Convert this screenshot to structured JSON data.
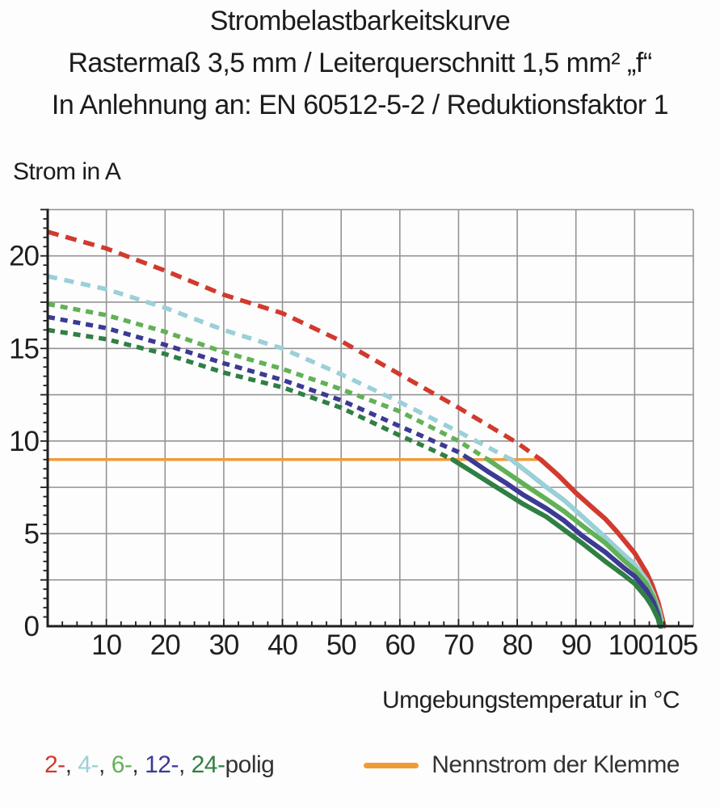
{
  "title": {
    "line1": "Strombelastbarkeitskurve",
    "line2": "Rastermaß 3,5 mm / Leiterquerschnitt 1,5 mm² „f“",
    "line3": "In Anlehnung an: EN 60512-5-2 / Reduktionsfaktor 1"
  },
  "axes": {
    "y_title": "Strom in A",
    "x_title": "Umgebungstemperatur in °C"
  },
  "legend": {
    "poles": [
      {
        "label": "2-",
        "color": "#d13a2e"
      },
      {
        "label": "4-",
        "color": "#9ad0d8"
      },
      {
        "label": "6-",
        "color": "#62b156"
      },
      {
        "label": "12-",
        "color": "#3c3a94"
      },
      {
        "label": "24-",
        "color": "#307f45"
      }
    ],
    "separator": ", ",
    "suffix": "polig",
    "suffix_color": "#333333",
    "nominal_label": "Nennstrom der Klemme",
    "nominal_color": "#f19b38"
  },
  "chart_data": {
    "type": "line",
    "title": "Strombelastbarkeitskurve",
    "xlabel": "Umgebungstemperatur in °C",
    "ylabel": "Strom in A",
    "xlim": [
      0,
      110
    ],
    "ylim": [
      0,
      22.5
    ],
    "x_major_step": 10,
    "y_major_step": 2.5,
    "x_minor_step": 2.5,
    "y_minor_step": 0.5,
    "x_tick_labels": [
      10,
      20,
      30,
      40,
      50,
      60,
      70,
      80,
      90,
      100,
      105
    ],
    "y_tick_labels": [
      0,
      5,
      10,
      15,
      20
    ],
    "grid": true,
    "grid_color": "#949494",
    "axis_color": "#1f1f1f",
    "nominal_line": {
      "name": "Nennstrom der Klemme",
      "color": "#f19b38",
      "current_a": 9,
      "x_start": 0,
      "x_end": 84.3
    },
    "series": [
      {
        "name": "2-polig",
        "color": "#d13a2e",
        "dash_pattern": "14 9",
        "dashed": [
          [
            0,
            21.3
          ],
          [
            10,
            20.4
          ],
          [
            20,
            19.2
          ],
          [
            30,
            17.9
          ],
          [
            40,
            16.9
          ],
          [
            50,
            15.4
          ],
          [
            60,
            13.6
          ],
          [
            70,
            11.8
          ],
          [
            80,
            9.9
          ],
          [
            84,
            9.0
          ]
        ],
        "solid": [
          [
            84,
            9.0
          ],
          [
            87,
            8.15
          ],
          [
            90,
            7.2
          ],
          [
            93,
            6.35
          ],
          [
            95,
            5.8
          ],
          [
            97,
            5.1
          ],
          [
            100,
            3.95
          ],
          [
            102,
            2.9
          ],
          [
            103,
            2.2
          ],
          [
            104,
            1.3
          ],
          [
            104.8,
            0.3
          ],
          [
            105,
            0
          ]
        ]
      },
      {
        "name": "4-polig",
        "color": "#9ad0d8",
        "dash_pattern": "12 9",
        "dashed": [
          [
            0,
            18.9
          ],
          [
            10,
            18.2
          ],
          [
            20,
            17.2
          ],
          [
            30,
            16.0
          ],
          [
            40,
            15.0
          ],
          [
            50,
            13.6
          ],
          [
            60,
            12.1
          ],
          [
            70,
            10.5
          ],
          [
            79,
            9.0
          ]
        ],
        "solid": [
          [
            79,
            9.0
          ],
          [
            82,
            8.25
          ],
          [
            85,
            7.5
          ],
          [
            88,
            6.8
          ],
          [
            91,
            5.95
          ],
          [
            95,
            4.8
          ],
          [
            98,
            3.9
          ],
          [
            100,
            3.35
          ],
          [
            102,
            2.5
          ],
          [
            103.2,
            1.7
          ],
          [
            104.2,
            0.8
          ],
          [
            104.8,
            0
          ]
        ]
      },
      {
        "name": "6-polig",
        "color": "#62b156",
        "dash_pattern": "9 7",
        "dashed": [
          [
            0,
            17.4
          ],
          [
            10,
            16.8
          ],
          [
            20,
            15.9
          ],
          [
            30,
            14.8
          ],
          [
            40,
            13.9
          ],
          [
            50,
            12.8
          ],
          [
            60,
            11.6
          ],
          [
            70,
            10.0
          ],
          [
            75,
            9.0
          ]
        ],
        "solid": [
          [
            75,
            9.0
          ],
          [
            78,
            8.35
          ],
          [
            81,
            7.7
          ],
          [
            85,
            6.85
          ],
          [
            88,
            6.2
          ],
          [
            91,
            5.45
          ],
          [
            95,
            4.5
          ],
          [
            98,
            3.6
          ],
          [
            100,
            3.05
          ],
          [
            102,
            2.3
          ],
          [
            103.2,
            1.55
          ],
          [
            104.1,
            0.7
          ],
          [
            104.6,
            0
          ]
        ]
      },
      {
        "name": "12-polig",
        "color": "#3c3a94",
        "dash_pattern": "9 7",
        "dashed": [
          [
            0,
            16.7
          ],
          [
            10,
            16.1
          ],
          [
            20,
            15.2
          ],
          [
            30,
            14.2
          ],
          [
            40,
            13.3
          ],
          [
            50,
            12.2
          ],
          [
            60,
            10.8
          ],
          [
            70,
            9.4
          ],
          [
            72,
            9.0
          ]
        ],
        "solid": [
          [
            72,
            9.0
          ],
          [
            75,
            8.35
          ],
          [
            78,
            7.75
          ],
          [
            81,
            7.1
          ],
          [
            85,
            6.35
          ],
          [
            88,
            5.7
          ],
          [
            91,
            4.9
          ],
          [
            95,
            4.0
          ],
          [
            98,
            3.2
          ],
          [
            100,
            2.7
          ],
          [
            102,
            1.95
          ],
          [
            103.2,
            1.3
          ],
          [
            104,
            0.6
          ],
          [
            104.4,
            0
          ]
        ]
      },
      {
        "name": "24-polig",
        "color": "#307f45",
        "dash_pattern": "9 7",
        "dashed": [
          [
            0,
            16.0
          ],
          [
            10,
            15.5
          ],
          [
            20,
            14.7
          ],
          [
            30,
            13.7
          ],
          [
            40,
            12.9
          ],
          [
            50,
            11.8
          ],
          [
            60,
            10.3
          ],
          [
            65,
            9.6
          ],
          [
            69,
            9.0
          ]
        ],
        "solid": [
          [
            69,
            9.0
          ],
          [
            72,
            8.4
          ],
          [
            75,
            7.8
          ],
          [
            78,
            7.2
          ],
          [
            81,
            6.6
          ],
          [
            85,
            5.9
          ],
          [
            88,
            5.2
          ],
          [
            91,
            4.5
          ],
          [
            95,
            3.5
          ],
          [
            98,
            2.8
          ],
          [
            100,
            2.3
          ],
          [
            102,
            1.55
          ],
          [
            103,
            1.05
          ],
          [
            104,
            0.4
          ],
          [
            104.3,
            0
          ]
        ]
      }
    ]
  }
}
